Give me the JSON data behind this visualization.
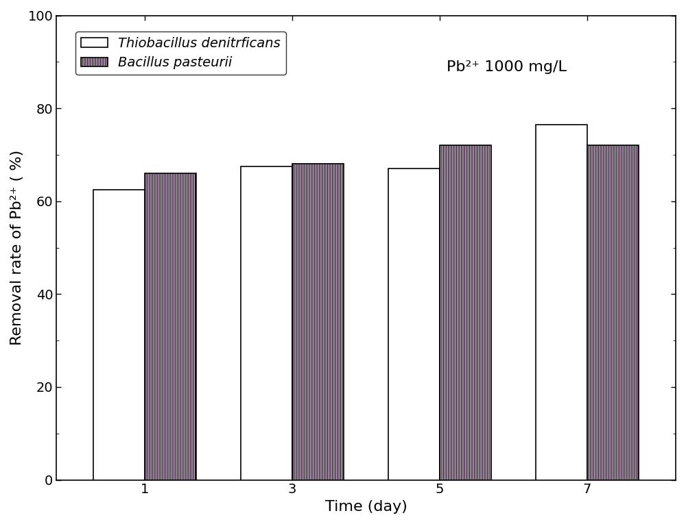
{
  "days": [
    1,
    3,
    5,
    7
  ],
  "thiobacillus_values": [
    62.5,
    67.5,
    67.0,
    76.5
  ],
  "bacillus_values": [
    66.0,
    68.0,
    72.0,
    72.0
  ],
  "bar_width": 0.35,
  "ylim": [
    0,
    100
  ],
  "yticks": [
    0,
    20,
    40,
    60,
    80,
    100
  ],
  "xlabel": "Time (day)",
  "ylabel": "Removal rate of Pb²⁺ ( %)",
  "annotation": "Pb²⁺ 1000 mg/L",
  "legend_label1": "Thiobacillus denitrficans",
  "legend_label2": "Bacillus pasteurii",
  "bar_color1": "#ffffff",
  "bar_color2": "#e8c8e8",
  "bar_edgecolor": "#000000",
  "hatch_color2": "#50a050",
  "hatch_pattern": "|||||||",
  "background_color": "#ffffff",
  "axis_fontsize": 16,
  "tick_fontsize": 14,
  "legend_fontsize": 14,
  "annotation_fontsize": 16
}
